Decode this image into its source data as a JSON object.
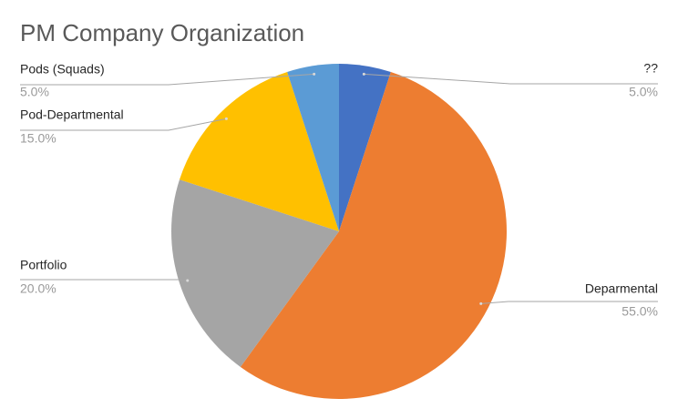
{
  "chart_data": {
    "type": "pie",
    "title": "PM Company Organization",
    "categories": [
      "??",
      "Deparmental",
      "Portfolio",
      "Pod-Departmental",
      "Pods (Squads)"
    ],
    "values": [
      5,
      55,
      20,
      15,
      5
    ],
    "value_labels": [
      "5.0%",
      "55.0%",
      "20.0%",
      "15.0%",
      "5.0%"
    ],
    "colors": [
      "#4472c4",
      "#ed7d31",
      "#a5a5a5",
      "#ffc000",
      "#5b9bd5"
    ]
  }
}
